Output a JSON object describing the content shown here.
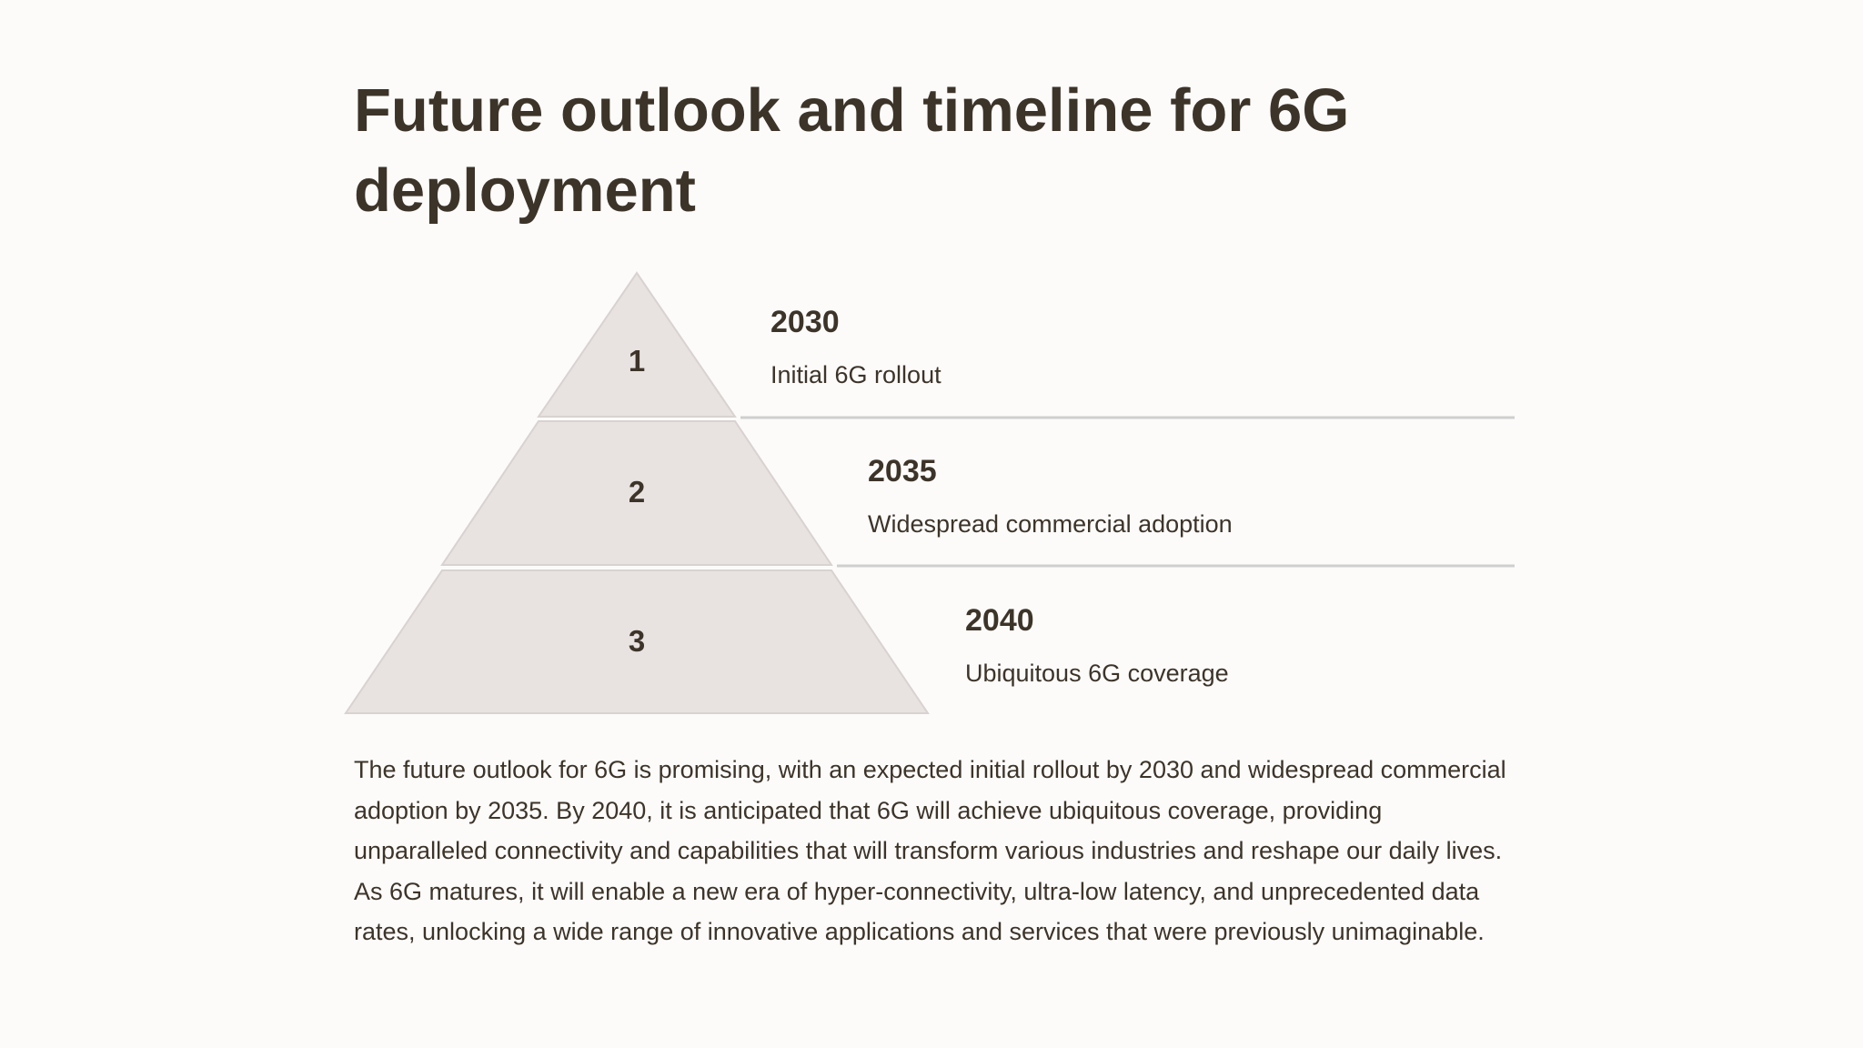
{
  "slide": {
    "title": "Future outlook and timeline for 6G deployment",
    "summary": "The future outlook for 6G is promising, with an expected initial rollout by 2030 and widespread commercial adoption by 2035. By 2040, it is anticipated that 6G will achieve ubiquitous coverage, providing unparalleled connectivity and capabilities that will transform various industries and reshape our daily lives. As 6G matures, it will enable a new era of hyper-connectivity, ultra-low latency, and unprecedented data rates, unlocking a wide range of innovative applications and services that were previously unimaginable."
  },
  "pyramid": {
    "fill_color": "#e8e2e1",
    "stroke_color": "#d8d2d1",
    "divider_color": "#cfcfcf",
    "tiers": [
      {
        "number": "1",
        "year": "2030",
        "description": "Initial 6G rollout"
      },
      {
        "number": "2",
        "year": "2035",
        "description": "Widespread commercial adoption"
      },
      {
        "number": "3",
        "year": "2040",
        "description": "Ubiquitous 6G coverage"
      }
    ]
  }
}
